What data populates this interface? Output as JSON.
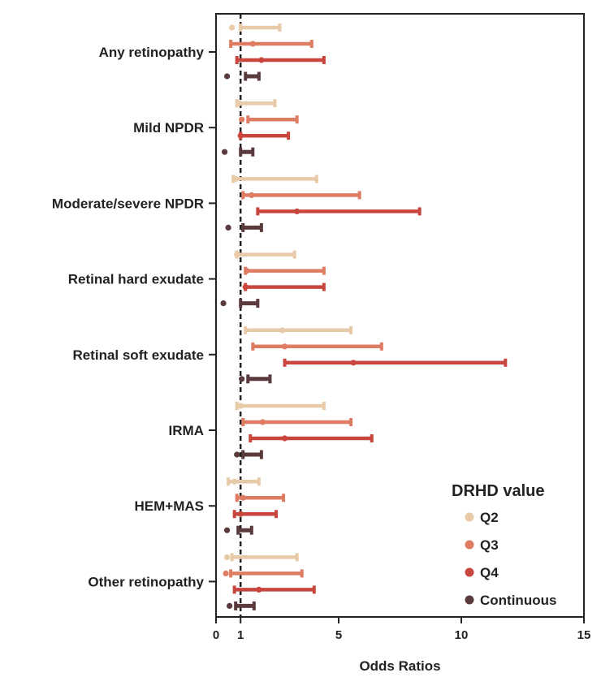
{
  "chart_data": {
    "type": "forest",
    "xlabel": "Odds Ratios",
    "xlim": [
      0,
      15
    ],
    "x_ticks": [
      "0",
      "1",
      "5",
      "10",
      "15"
    ],
    "reference_line": 1,
    "legend": {
      "title": "DRHD value",
      "position": "bottom-right",
      "entries": [
        "Q2",
        "Q3",
        "Q4",
        "Continuous"
      ]
    },
    "colors": {
      "Q2": "#e8c9a8",
      "Q3": "#dd7c63",
      "Q4": "#c9463f",
      "Continuous": "#5a3a3c"
    },
    "groups": [
      {
        "label": "Any retinopathy",
        "rows": [
          {
            "series": "Q2",
            "or": 0.65,
            "lo": 1.0,
            "hi": 2.6
          },
          {
            "series": "Q3",
            "or": 1.5,
            "lo": 0.6,
            "hi": 3.9
          },
          {
            "series": "Q4",
            "or": 1.85,
            "lo": 0.85,
            "hi": 4.4
          },
          {
            "series": "Continuous",
            "or": 0.45,
            "lo": 1.2,
            "hi": 1.75
          }
        ]
      },
      {
        "label": "Mild NPDR",
        "rows": [
          {
            "series": "Q2",
            "or": 0.95,
            "lo": 0.85,
            "hi": 2.4
          },
          {
            "series": "Q3",
            "or": 1.05,
            "lo": 1.3,
            "hi": 3.3
          },
          {
            "series": "Q4",
            "or": 1.0,
            "lo": 1.0,
            "hi": 2.95
          },
          {
            "series": "Continuous",
            "or": 0.35,
            "lo": 1.0,
            "hi": 1.5
          }
        ]
      },
      {
        "label": "Moderate/severe NPDR",
        "rows": [
          {
            "series": "Q2",
            "or": 0.8,
            "lo": 0.7,
            "hi": 4.1
          },
          {
            "series": "Q3",
            "or": 1.45,
            "lo": 1.1,
            "hi": 5.85
          },
          {
            "series": "Q4",
            "or": 3.3,
            "lo": 1.7,
            "hi": 8.3
          },
          {
            "series": "Continuous",
            "or": 0.5,
            "lo": 1.1,
            "hi": 1.85
          }
        ]
      },
      {
        "label": "Retinal hard exudate",
        "rows": [
          {
            "series": "Q2",
            "or": 0.85,
            "lo": 0.85,
            "hi": 3.2
          },
          {
            "series": "Q3",
            "or": 1.25,
            "lo": 1.2,
            "hi": 4.4
          },
          {
            "series": "Q4",
            "or": 1.2,
            "lo": 1.2,
            "hi": 4.4
          },
          {
            "series": "Continuous",
            "or": 0.3,
            "lo": 1.0,
            "hi": 1.7
          }
        ]
      },
      {
        "label": "Retinal soft exudate",
        "rows": [
          {
            "series": "Q2",
            "or": 2.7,
            "lo": 1.2,
            "hi": 5.5
          },
          {
            "series": "Q3",
            "or": 2.8,
            "lo": 1.5,
            "hi": 6.75
          },
          {
            "series": "Q4",
            "or": 5.6,
            "lo": 2.8,
            "hi": 11.8
          },
          {
            "series": "Continuous",
            "or": 1.05,
            "lo": 1.3,
            "hi": 2.2
          }
        ]
      },
      {
        "label": "IRMA",
        "rows": [
          {
            "series": "Q2",
            "or": 1.0,
            "lo": 0.85,
            "hi": 4.4
          },
          {
            "series": "Q3",
            "or": 1.9,
            "lo": 1.1,
            "hi": 5.5
          },
          {
            "series": "Q4",
            "or": 2.8,
            "lo": 1.4,
            "hi": 6.35
          },
          {
            "series": "Continuous",
            "or": 0.85,
            "lo": 1.1,
            "hi": 1.85
          }
        ]
      },
      {
        "label": "HEM+MAS",
        "rows": [
          {
            "series": "Q2",
            "or": 0.75,
            "lo": 0.5,
            "hi": 1.75
          },
          {
            "series": "Q3",
            "or": 1.1,
            "lo": 0.85,
            "hi": 2.75
          },
          {
            "series": "Q4",
            "or": 1.0,
            "lo": 0.75,
            "hi": 2.45
          },
          {
            "series": "Continuous",
            "or": 0.45,
            "lo": 0.9,
            "hi": 1.45
          }
        ]
      },
      {
        "label": "Other retinopathy",
        "rows": [
          {
            "series": "Q2",
            "or": 0.45,
            "lo": 0.65,
            "hi": 3.3
          },
          {
            "series": "Q3",
            "or": 0.4,
            "lo": 0.6,
            "hi": 3.5
          },
          {
            "series": "Q4",
            "or": 1.75,
            "lo": 0.75,
            "hi": 4.0
          },
          {
            "series": "Continuous",
            "or": 0.55,
            "lo": 0.8,
            "hi": 1.55
          }
        ]
      }
    ]
  }
}
